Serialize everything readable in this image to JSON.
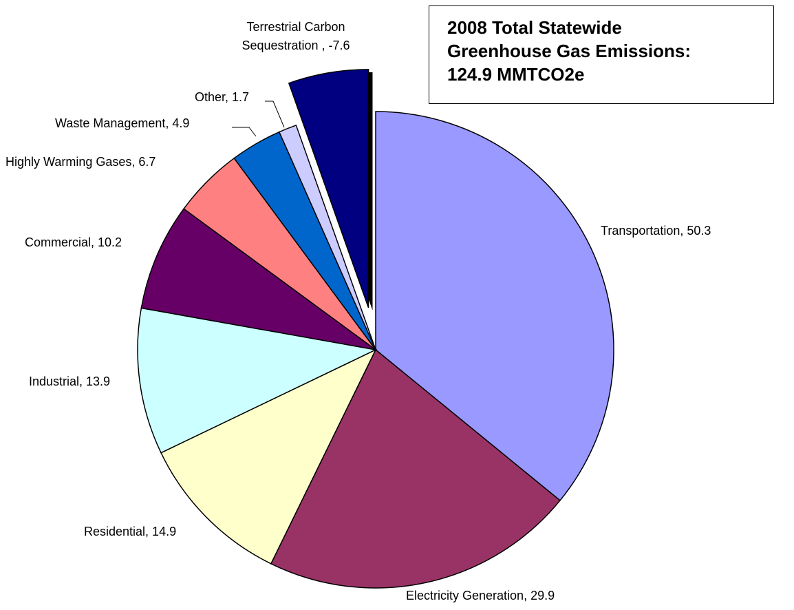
{
  "chart_data": {
    "type": "pie",
    "title": "2008 Total Statewide Greenhouse Gas Emissions: 124.9 MMTCO2e",
    "values": [
      50.3,
      29.9,
      14.9,
      13.9,
      10.2,
      6.7,
      4.9,
      1.7,
      -7.6
    ],
    "value_labels": [
      "Transportation, 50.3",
      "Electricity Generation, 29.9",
      "Residential, 14.9",
      "Industrial, 13.9",
      "Commercial, 10.2",
      "Highly Warming Gases, 6.7",
      "Waste Management, 4.9",
      "Other, 1.7",
      "Terrestrial Carbon Sequestration , -7.6"
    ],
    "colors": [
      "#9999ff",
      "#993366",
      "#ffffcc",
      "#ccffff",
      "#660066",
      "#ff8080",
      "#0066cc",
      "#ccccff",
      "#000080"
    ]
  }
}
